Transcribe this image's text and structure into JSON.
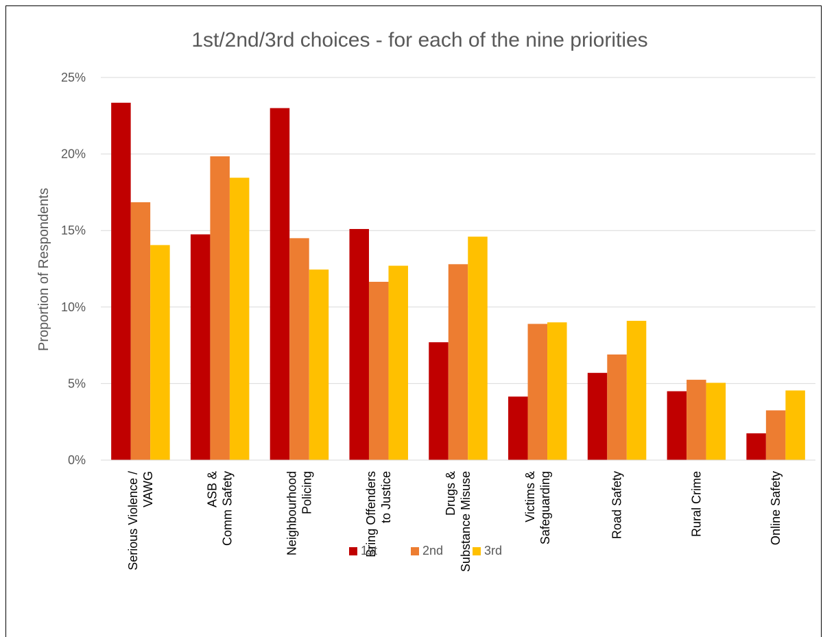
{
  "chart_data": {
    "type": "bar",
    "title": "1st/2nd/3rd choices - for each of the nine priorities",
    "ylabel": "Proportion of Respondents",
    "xlabel": "",
    "ylim": [
      0,
      25
    ],
    "yticks": [
      "0%",
      "5%",
      "10%",
      "15%",
      "20%",
      "25%"
    ],
    "yticks_values": [
      0,
      5,
      10,
      15,
      20,
      25
    ],
    "grid": true,
    "legend_position": "bottom",
    "categories": [
      [
        "Serious Violence /",
        "VAWG"
      ],
      [
        "ASB &",
        "Comm Safety"
      ],
      [
        "Neighbourhood",
        "Policing"
      ],
      [
        "Bring Offenders",
        "to Justice"
      ],
      [
        "Drugs &",
        "Substance Misuse"
      ],
      [
        "Victims &",
        "Safeguarding"
      ],
      [
        "Road Safety"
      ],
      [
        "Rural Crime"
      ],
      [
        "Online Safety"
      ]
    ],
    "series": [
      {
        "name": "1st",
        "color": "#c00000",
        "values": [
          23.35,
          14.75,
          23.0,
          15.1,
          7.7,
          4.15,
          5.7,
          4.5,
          1.75
        ]
      },
      {
        "name": "2nd",
        "color": "#ed7d31",
        "values": [
          16.85,
          19.85,
          14.5,
          11.65,
          12.8,
          8.9,
          6.9,
          5.25,
          3.25
        ]
      },
      {
        "name": "3rd",
        "color": "#ffc000",
        "values": [
          14.05,
          18.45,
          12.45,
          12.7,
          14.6,
          9.0,
          9.1,
          5.05,
          4.55
        ]
      }
    ]
  }
}
